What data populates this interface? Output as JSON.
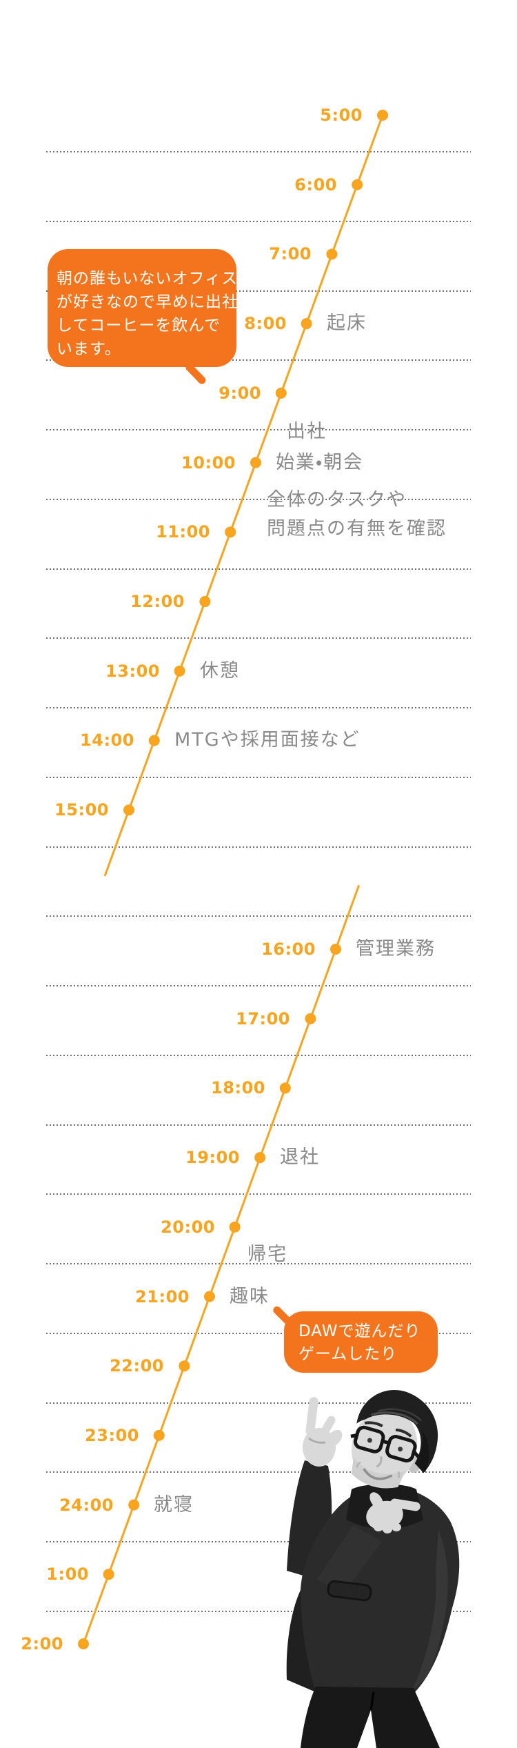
{
  "colors": {
    "accent": "#F8A41E",
    "bubble": "#F4741E",
    "label_gray": "#8A8A8A",
    "rule_gray": "#565656",
    "background": "#ffffff"
  },
  "timeline": {
    "morning": {
      "entries": [
        {
          "time": "5:00"
        },
        {
          "time": "6:00"
        },
        {
          "time": "7:00"
        },
        {
          "time": "8:00",
          "activity": "起床"
        },
        {
          "time": "9:00",
          "activity": "出社"
        },
        {
          "time": "10:00",
          "activity": "始業・朝会"
        },
        {
          "time": "11:00"
        },
        {
          "time": "12:00"
        },
        {
          "time": "13:00",
          "activity": "休憩"
        },
        {
          "time": "14:00",
          "activity": "MTGや採用面接など"
        },
        {
          "time": "15:00"
        }
      ]
    },
    "note_lines": [
      "全体のタスクや",
      "問題点の有無を確認"
    ],
    "evening": {
      "entries": [
        {
          "time": "16:00",
          "activity": "管理業務"
        },
        {
          "time": "17:00"
        },
        {
          "time": "18:00"
        },
        {
          "time": "19:00",
          "activity": "退社"
        },
        {
          "time": "20:00",
          "activity": "帰宅"
        },
        {
          "time": "21:00",
          "activity": "趣味"
        },
        {
          "time": "22:00"
        },
        {
          "time": "23:00"
        },
        {
          "time": "24:00",
          "activity": "就寝"
        },
        {
          "time": "1:00"
        },
        {
          "time": "2:00"
        }
      ]
    }
  },
  "bubbles": {
    "morning_note": {
      "lines": [
        "朝の誰もいないオフィス",
        "が好きなので早めに出社",
        "してコーヒーを飲んで",
        "います。"
      ]
    },
    "evening_note": {
      "lines": [
        "DAWで遊んだり",
        "ゲームしたり"
      ]
    }
  }
}
